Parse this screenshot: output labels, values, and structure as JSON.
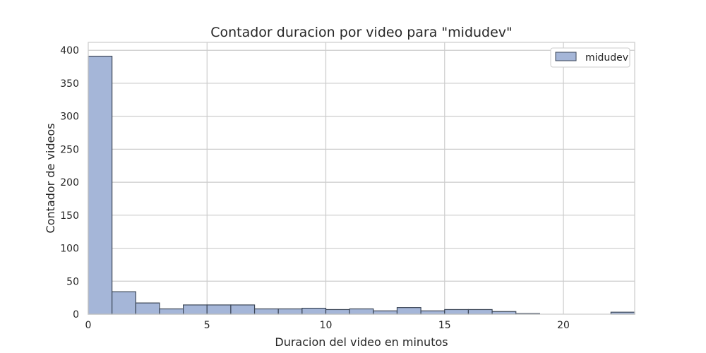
{
  "chart_data": {
    "type": "bar",
    "title": "Contador duracion por video para \"midudev\"",
    "xlabel": "Duracion del video en minutos",
    "ylabel": "Contador de videos",
    "xlim": [
      0,
      23
    ],
    "ylim": [
      0,
      412
    ],
    "xticks": [
      0,
      5,
      10,
      15,
      20
    ],
    "yticks": [
      0,
      50,
      100,
      150,
      200,
      250,
      300,
      350,
      400
    ],
    "grid": true,
    "legend_position": "top-right",
    "series": [
      {
        "name": "midudev",
        "color": "#a5b6d8",
        "edge_color": "#3c4758",
        "bins": [
          [
            0,
            1,
            391
          ],
          [
            1,
            2,
            34
          ],
          [
            2,
            3,
            17
          ],
          [
            3,
            4,
            8
          ],
          [
            4,
            5,
            14
          ],
          [
            5,
            6,
            14
          ],
          [
            6,
            7,
            14
          ],
          [
            7,
            8,
            8
          ],
          [
            8,
            9,
            8
          ],
          [
            9,
            10,
            9
          ],
          [
            10,
            11,
            7
          ],
          [
            11,
            12,
            8
          ],
          [
            12,
            13,
            5
          ],
          [
            13,
            14,
            10
          ],
          [
            14,
            15,
            5
          ],
          [
            15,
            16,
            7
          ],
          [
            16,
            17,
            7
          ],
          [
            17,
            18,
            4
          ],
          [
            18,
            19,
            1
          ],
          [
            19,
            20,
            0
          ],
          [
            20,
            21,
            0
          ],
          [
            21,
            22,
            0
          ],
          [
            22,
            23,
            3
          ]
        ]
      }
    ]
  }
}
